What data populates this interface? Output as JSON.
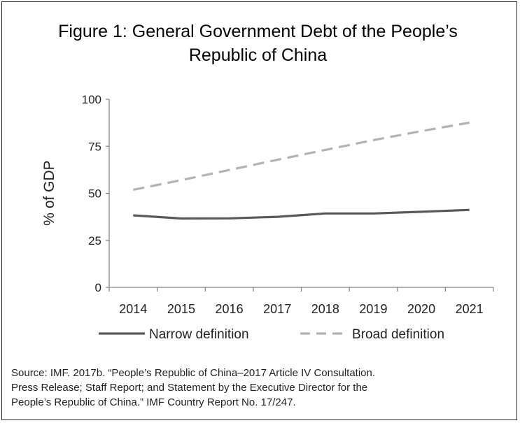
{
  "title_lines": [
    "Figure 1: General Government Debt of the People’s",
    "Republic of China"
  ],
  "source_lines": [
    "Source: IMF. 2017b. “People’s Republic of China–2017 Article IV Consultation.",
    "Press Release; Staff Report; and Statement by the Executive Director for the",
    "People’s Republic of China.” IMF Country Report No. 17/247."
  ],
  "chart_data": {
    "type": "line",
    "title": "Figure 1: General Government Debt of the People’s Republic of China",
    "xlabel": "",
    "ylabel": "% of GDP",
    "ylim": [
      0,
      100
    ],
    "yticks": [
      0,
      25,
      50,
      75,
      100
    ],
    "grid": false,
    "legend_position": "bottom",
    "x": [
      "2014",
      "2015",
      "2016",
      "2017",
      "2018",
      "2019",
      "2020",
      "2021"
    ],
    "series": [
      {
        "name": "Narrow definition",
        "color": "#595959",
        "dash": "solid",
        "values": [
          38.3,
          36.6,
          36.7,
          37.5,
          39.3,
          39.3,
          40.2,
          41.2
        ]
      },
      {
        "name": "Broad definition",
        "color": "#b3b3b3",
        "dash": "dashed",
        "values": [
          51.9,
          57.0,
          62.4,
          67.8,
          73.1,
          78.3,
          83.1,
          87.6
        ]
      }
    ]
  }
}
